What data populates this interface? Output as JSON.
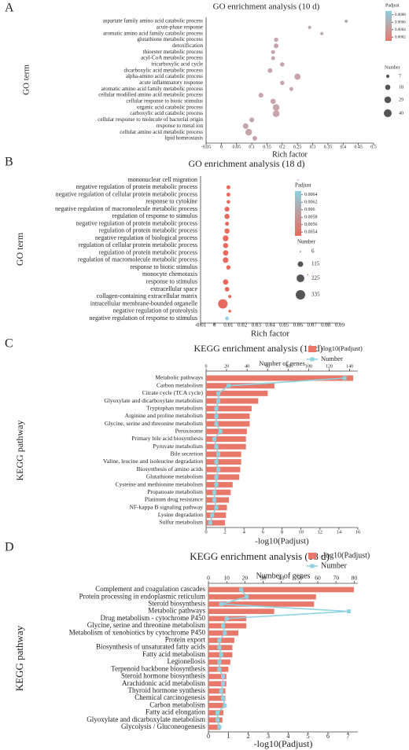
{
  "chart_data": [
    {
      "type": "scatter",
      "panel": "A",
      "title": "GO enrichment analysis (10 d)",
      "xlabel": "Rich factor",
      "ylabel": "GO term",
      "categories": [
        "aspartate family amino acid catabolic process",
        "acute-phase response",
        "aromatic amino acid family catabolic process",
        "glutathione metabolic process",
        "detoxification",
        "thioester metabolic process",
        "acyl-CoA metabolic process",
        "tricarboxylic acid cycle",
        "dicarboxylic acid metabolic process",
        "alpha-amino acid catabolic process",
        "acute inflammatory response",
        "aromatic amino acid family metabolic process",
        "cellular modified amino acid metabolic process",
        "cellular response to biotic stimulus",
        "organic acid catabolic process",
        "carboxylic acid catabolic process",
        "cellular response to molecule of bacterial origin",
        "response to metal ion",
        "cellular amino acid metabolic process",
        "lipid homeostasis"
      ],
      "x": [
        0.41,
        0.29,
        0.33,
        0.18,
        0.18,
        0.17,
        0.17,
        0.2,
        0.16,
        0.25,
        0.2,
        0.23,
        0.13,
        0.17,
        0.18,
        0.18,
        0.1,
        0.08,
        0.09,
        0.11
      ],
      "sizes": [
        7,
        7,
        7,
        12,
        15,
        10,
        10,
        12,
        14,
        25,
        12,
        10,
        15,
        18,
        29,
        29,
        15,
        20,
        29,
        14
      ],
      "colors": [
        "#b8aab2",
        "#b8aab2",
        "#b8aab2",
        "#c8a5ab",
        "#c8a5ab",
        "#c8a5ab",
        "#c8a5ab",
        "#c8a5ab",
        "#c8a5ab",
        "#c8a5ab",
        "#c8a5ab",
        "#c8a5ab",
        "#c8a5ab",
        "#c8a5ab",
        "#c8a5ab",
        "#c8a5ab",
        "#c8a5ab",
        "#c8a5ab",
        "#c8a5ab",
        "#c8a5ab"
      ],
      "xlim": [
        -0.05,
        0.5
      ],
      "xticks": [
        -0.05,
        0,
        0.05,
        0.1,
        0.15,
        0.2,
        0.25,
        0.3,
        0.35,
        0.4,
        0.45,
        0.5
      ],
      "color_legend": {
        "title": "Padjust",
        "clim": [
          0.0001,
          0.0009
        ],
        "ticks": [
          0.0008,
          0.0006,
          0.0004,
          0.0002
        ],
        "colors": [
          "#8ecfe0",
          "#e8786a"
        ]
      },
      "size_legend": {
        "title": "Number",
        "values": [
          7,
          18,
          29,
          40
        ]
      }
    },
    {
      "type": "scatter",
      "panel": "B",
      "title": "GO enrichment analysis (18 d)",
      "xlabel": "Rich factor",
      "ylabel": "GO term",
      "categories": [
        "mononuclear cell migration",
        "negative regulation of protein metabolic process",
        "negative regulation of cellular protein metabolic process",
        "response to cytokine",
        "negative regulation of macromolecule metabolic process",
        "regulation of response to stimulus",
        "negative regulation of protein metabolic process",
        "regulation of protein metabolic process",
        "negative regulation of biological process",
        "regulation of cellular protein metabolic process",
        "regulation of protein metabolic process",
        "regulation of macromolecule metabolic process",
        "response to biotic stimulus",
        "monocyte chemotaxis",
        "response to stimulus",
        "extracellular space",
        "collagen-containing extracellular matrix",
        "intracellular membrane-bounded organelle",
        "negative regulation of proteolysis",
        "negative regulation of response to stimulus"
      ],
      "x": [
        0.06,
        0.01,
        0.01,
        0.01,
        0.009,
        0.009,
        0.009,
        0.009,
        0.008,
        0.008,
        0.008,
        0.008,
        0.01,
        0.067,
        0.008,
        0.009,
        0.011,
        0.006,
        0.011,
        0.009
      ],
      "sizes": [
        6,
        60,
        60,
        50,
        90,
        100,
        60,
        100,
        130,
        100,
        110,
        120,
        70,
        6,
        110,
        80,
        40,
        335,
        30,
        50
      ],
      "colors": [
        "#e8695d",
        "#e8695d",
        "#e8695d",
        "#e8695d",
        "#e8695d",
        "#e8695d",
        "#e8695d",
        "#e8695d",
        "#e8695d",
        "#e8695d",
        "#e8695d",
        "#e8695d",
        "#e8695d",
        "#e8695d",
        "#e8695d",
        "#e8695d",
        "#e8695d",
        "#e8695d",
        "#e8695d",
        "#8ecfe0"
      ],
      "xlim": [
        -0.01,
        0.09
      ],
      "xticks": [
        -0.01,
        0,
        0.01,
        0.02,
        0.03,
        0.04,
        0.05,
        0.06,
        0.07,
        0.08,
        0.09
      ],
      "color_legend": {
        "title": "Padjust",
        "clim": [
          0.0053,
          0.0065
        ],
        "ticks": [
          0.0064,
          0.0062,
          0.006,
          0.0058,
          0.0056,
          0.0054
        ],
        "colors": [
          "#8ecfe0",
          "#e8695d"
        ]
      },
      "size_legend": {
        "title": "Number",
        "values": [
          6,
          115,
          225,
          335
        ]
      }
    },
    {
      "type": "bar_line",
      "panel": "C",
      "title": "KEGG enrichment analysis (10 d)",
      "xlabel": "-log10(Padjust)",
      "x2label": "Number of genes",
      "ylabel": "KEGG pathway",
      "categories": [
        "Metabolic pathways",
        "Carbon metabolism",
        "Citrate cycle (TCA cycle)",
        "Glyoxylate and dicarboxylate metabolism",
        "Tryptophan metabolism",
        "Arginine and proline metabolism",
        "Glycine, serine and threonine metabolism",
        "Peroxisome",
        "Primary bile acid biosynthesis",
        "Pyruvate metabolism",
        "Bile secretion",
        "Valine, leucine and isoleucine degradation",
        "Biosynthesis of amino acids",
        "Glutathione metabolism",
        "Cysteine and methionine metabolism",
        "Propanoate metabolism",
        "Platinum drug resistance",
        "NF-kappa B signaling pathway",
        "Lysine degradation",
        "Sulfur metabolism"
      ],
      "series": [
        {
          "name": "-log10(Padjust)",
          "color": "#e8786a",
          "values": [
            15.5,
            7.2,
            6.5,
            5.5,
            4.8,
            4.6,
            4.6,
            4.3,
            4.2,
            4.2,
            3.7,
            3.7,
            3.6,
            3.5,
            2.8,
            2.6,
            2.4,
            2.2,
            2.1,
            2.0
          ]
        },
        {
          "name": "Number",
          "color": "#8fd3e3",
          "axis": "x2",
          "values": [
            135,
            22,
            12,
            12,
            10,
            10,
            10,
            14,
            8,
            10,
            12,
            10,
            12,
            10,
            10,
            8,
            8,
            10,
            6,
            4
          ]
        }
      ],
      "xlim": [
        0,
        16
      ],
      "xticks": [
        0,
        2,
        4,
        6,
        8,
        10,
        12,
        14,
        16
      ],
      "x2lim": [
        0,
        148
      ],
      "x2ticks": [
        0,
        20,
        40,
        60,
        80,
        100,
        120,
        140
      ]
    },
    {
      "type": "bar_line",
      "panel": "D",
      "title": "KEGG enrichment analysis (18 d)",
      "xlabel": "-log10(Padjust)",
      "x2label": "Number of genes",
      "ylabel": "KEGG pathway",
      "categories": [
        "Complement and coagulation cascades",
        "Protein processing in endoplasmic reticulum",
        "Steroid biosynthesis",
        "Metabolic pathways",
        "Drug metabolism - cytochrome P450",
        "Glycine, serine and threonine metabolism",
        "Metabolism of xenobiotics by cytochrome P450",
        "Protein export",
        "Biosynthesis of unsaturated fatty acids",
        "Fatty acid metabolism",
        "Legionellosis",
        "Terpenoid backbone biosynthesis",
        "Steroid hormone biosynthesis",
        "Arachidonic acid metabolism",
        "Thyroid hormone synthesis",
        "Chemical carcinogenesis",
        "Carbon metabolism",
        "Fatty acid elongation",
        "Glyoxylate and dicarboxylate metabolism",
        "Glycolysis / Gluconeogenesis"
      ],
      "series": [
        {
          "name": "-log10(Padjust)",
          "color": "#e8786a",
          "values": [
            7.3,
            5.4,
            5.3,
            3.3,
            1.9,
            1.9,
            1.5,
            1.3,
            1.2,
            1.2,
            1.1,
            1.0,
            0.9,
            0.9,
            0.85,
            0.85,
            0.8,
            0.75,
            0.7,
            0.6
          ]
        },
        {
          "name": "Number",
          "color": "#8fd3e3",
          "axis": "x2",
          "values": [
            18,
            21,
            7,
            77,
            10,
            8,
            9,
            6,
            6,
            7,
            6,
            6,
            8,
            8,
            7,
            8,
            9,
            5,
            5,
            6
          ]
        }
      ],
      "xlim": [
        0,
        7.5
      ],
      "xticks": [
        0,
        1,
        2,
        3,
        4,
        5,
        6,
        7
      ],
      "x2lim": [
        0,
        82
      ],
      "x2ticks": [
        0,
        10,
        20,
        30,
        40,
        50,
        60,
        70,
        80
      ]
    }
  ]
}
